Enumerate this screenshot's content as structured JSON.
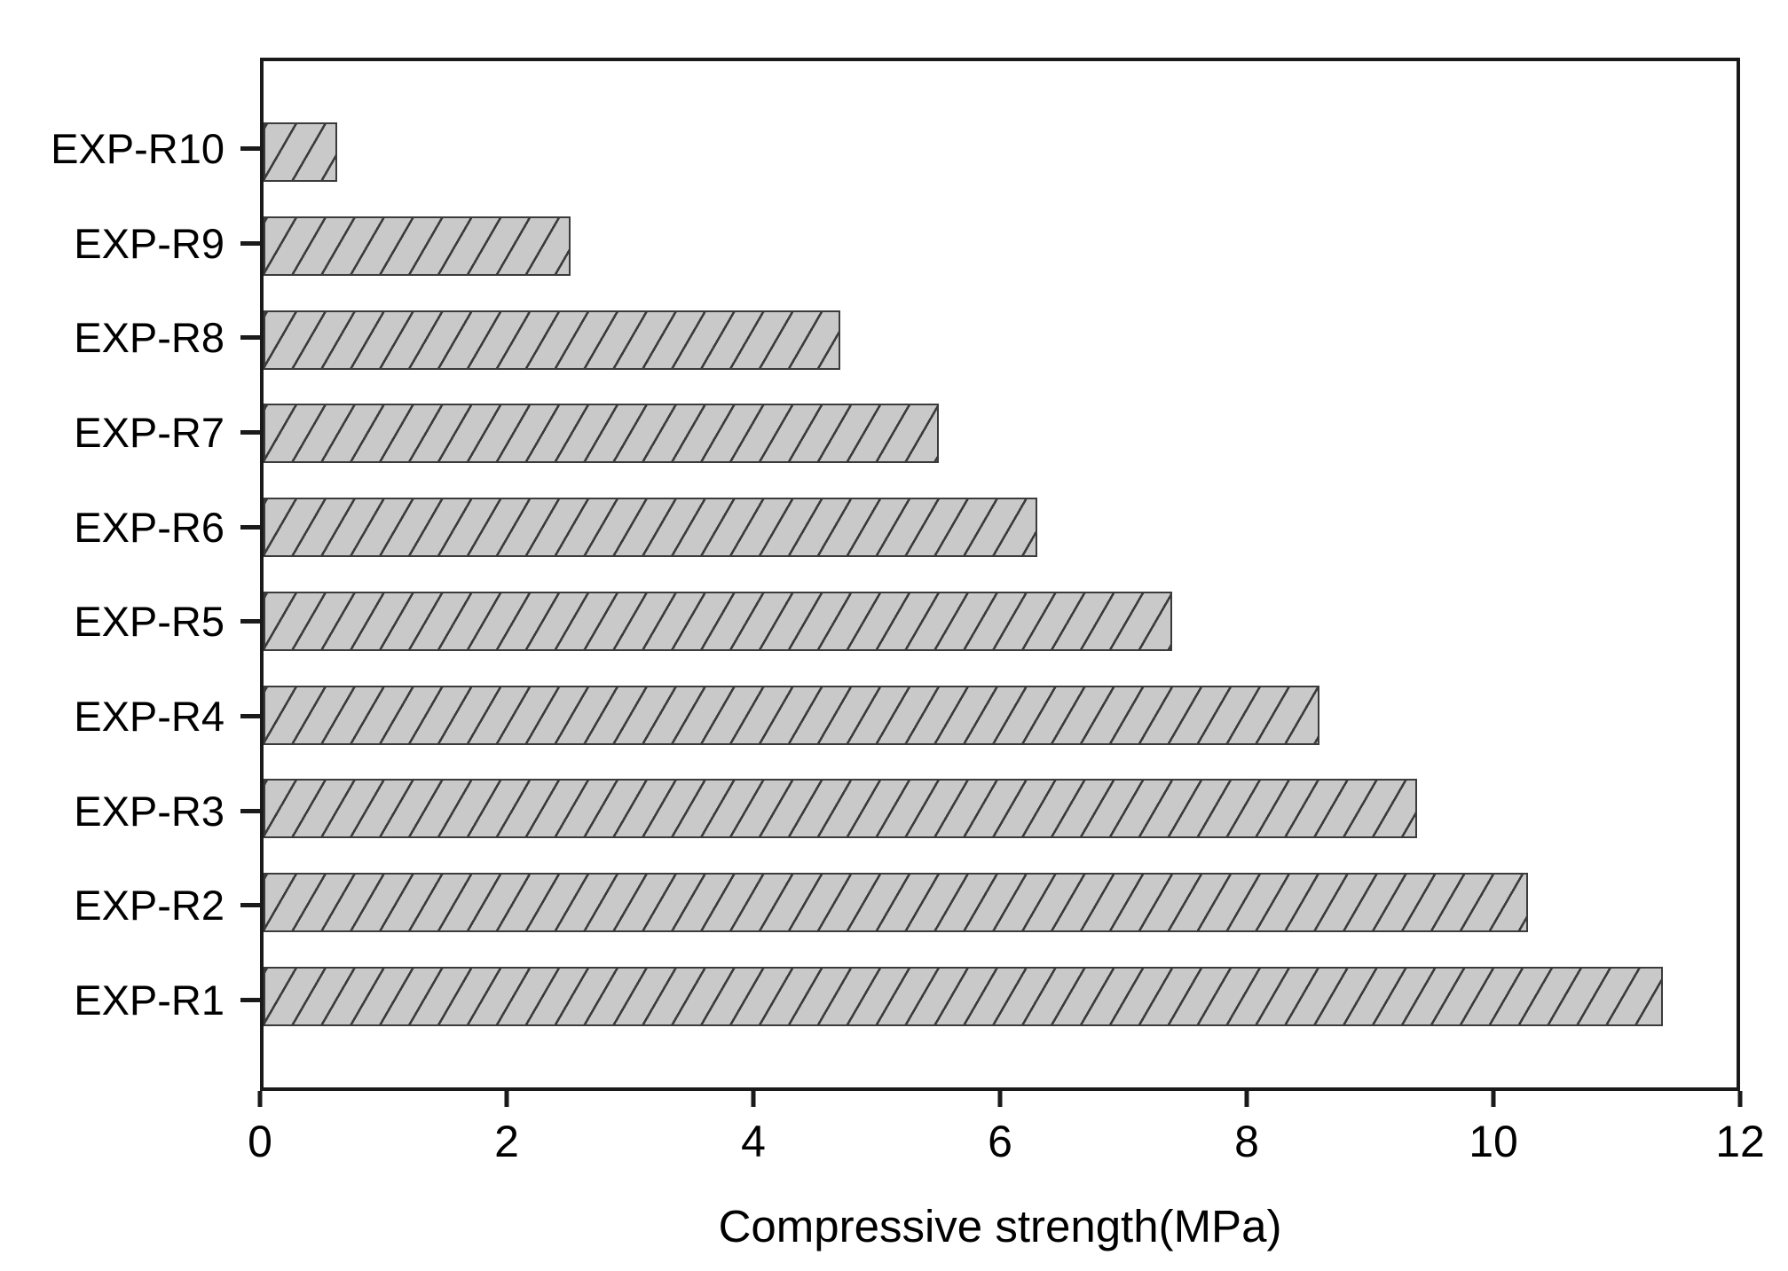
{
  "figure": {
    "background": "#ffffff"
  },
  "chart_data": {
    "type": "bar",
    "orientation": "horizontal",
    "title": "",
    "xlabel": "Compressive strength(MPa)",
    "ylabel": "",
    "categories": [
      "EXP-R10",
      "EXP-R9",
      "EXP-R8",
      "EXP-R7",
      "EXP-R6",
      "EXP-R5",
      "EXP-R4",
      "EXP-R3",
      "EXP-R2",
      "EXP-R1"
    ],
    "values": [
      0.6,
      2.5,
      4.7,
      5.5,
      6.3,
      7.4,
      8.6,
      9.4,
      10.3,
      11.4
    ],
    "xlim": [
      0,
      12
    ],
    "xticks": [
      0,
      2,
      4,
      6,
      8,
      10,
      12
    ],
    "grid": false,
    "legend": null,
    "bar_style": {
      "fill": "#c9c9c9",
      "hatch_pattern": "forward-diagonal",
      "hatch_color": "#3b3b3b",
      "border_color": "#3b3b3b"
    },
    "axis_color": "#1a1a1a",
    "text_color": "#000000"
  }
}
